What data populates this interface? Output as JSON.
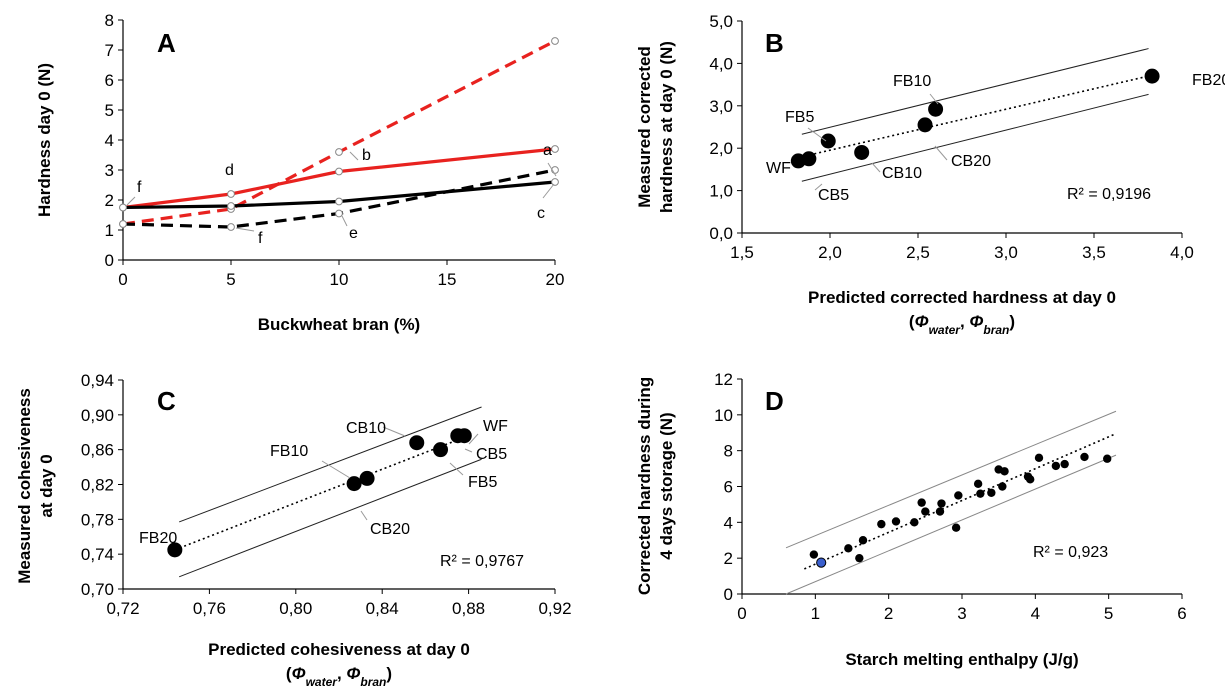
{
  "chart_data": [
    {
      "panel": "A",
      "type": "line",
      "xlabel": "Buckwheat bran (%)",
      "ylabel": "Hardness day 0 (N)",
      "xlim": [
        0,
        20
      ],
      "ylim": [
        0,
        8
      ],
      "xticks": [
        "0",
        "5",
        "10",
        "15",
        "20"
      ],
      "yticks": [
        "0",
        "1",
        "2",
        "3",
        "4",
        "5",
        "6",
        "7",
        "8"
      ],
      "series": [
        {
          "color": "#e8221f",
          "style": "dashed",
          "x": [
            0,
            5,
            10,
            20
          ],
          "values": [
            1.2,
            1.7,
            3.6,
            7.3
          ]
        },
        {
          "color": "#e8221f",
          "style": "solid",
          "x": [
            0,
            5,
            10,
            20
          ],
          "values": [
            1.75,
            2.2,
            2.95,
            3.7
          ]
        },
        {
          "color": "#000000",
          "style": "solid",
          "x": [
            0,
            5,
            10,
            20
          ],
          "values": [
            1.75,
            1.8,
            1.95,
            2.6
          ]
        },
        {
          "color": "#000000",
          "style": "dashed",
          "x": [
            0,
            5,
            10,
            20
          ],
          "values": [
            1.2,
            1.1,
            1.55,
            3.0
          ]
        }
      ],
      "annotations": [
        "a",
        "b",
        "c",
        "d",
        "e",
        "f",
        "f"
      ]
    },
    {
      "panel": "B",
      "type": "scatter",
      "xlabel": "Predicted corrected hardness at day 0",
      "xlabel_sub": "(Φwater, Φbran)",
      "xlabel_sub_parts": [
        "(",
        "Φ",
        "water",
        ", ",
        "Φ",
        "bran",
        ")"
      ],
      "ylabel": "Measured corrected",
      "ylabel2": "hardness at day 0 (N)",
      "xlim": [
        1.5,
        4.0
      ],
      "ylim": [
        0.0,
        5.0
      ],
      "xticks": [
        "1,5",
        "2,0",
        "2,5",
        "3,0",
        "3,5",
        "4,0"
      ],
      "yticks": [
        "0,0",
        "1,0",
        "2,0",
        "3,0",
        "4,0",
        "5,0"
      ],
      "points": [
        {
          "label": "WF",
          "x": 1.82,
          "y": 1.7
        },
        {
          "label": "CB5",
          "x": 1.88,
          "y": 1.75
        },
        {
          "label": "FB5",
          "x": 1.99,
          "y": 2.17
        },
        {
          "label": "CB10",
          "x": 2.18,
          "y": 1.9
        },
        {
          "label": "CB20",
          "x": 2.54,
          "y": 2.55
        },
        {
          "label": "FB10",
          "x": 2.6,
          "y": 2.92
        },
        {
          "label": "FB20",
          "x": 3.83,
          "y": 3.7
        }
      ],
      "r2": "R² = 0,9196"
    },
    {
      "panel": "C",
      "type": "scatter",
      "xlabel": "Predicted cohesiveness at day 0",
      "xlabel_sub": "(Φwater, Φbran)",
      "xlabel_sub_parts": [
        "(",
        "Φ",
        "water",
        ", ",
        "Φ",
        "bran",
        ")"
      ],
      "ylabel": "Measured cohesiveness",
      "ylabel2": "at day 0",
      "xlim": [
        0.72,
        0.92
      ],
      "ylim": [
        0.7,
        0.94
      ],
      "xticks": [
        "0,72",
        "0,76",
        "0,80",
        "0,84",
        "0,88",
        "0,92"
      ],
      "yticks": [
        "0,70",
        "0,74",
        "0,78",
        "0,82",
        "0,86",
        "0,90",
        "0,94"
      ],
      "points": [
        {
          "label": "FB20",
          "x": 0.744,
          "y": 0.745
        },
        {
          "label": "FB10",
          "x": 0.827,
          "y": 0.821
        },
        {
          "label": "CB20",
          "x": 0.833,
          "y": 0.827
        },
        {
          "label": "CB10",
          "x": 0.856,
          "y": 0.868
        },
        {
          "label": "FB5",
          "x": 0.867,
          "y": 0.86
        },
        {
          "label": "CB5",
          "x": 0.875,
          "y": 0.876
        },
        {
          "label": "WF",
          "x": 0.878,
          "y": 0.876
        }
      ],
      "r2": "R² = 0,9767"
    },
    {
      "panel": "D",
      "type": "scatter",
      "xlabel": "Starch melting enthalpy (J/g)",
      "ylabel": "Corrected hardness during",
      "ylabel2": "4 days storage (N)",
      "xlim": [
        0,
        6
      ],
      "ylim": [
        0,
        12
      ],
      "xticks": [
        "0",
        "1",
        "2",
        "3",
        "4",
        "5",
        "6"
      ],
      "yticks": [
        "0",
        "2",
        "4",
        "6",
        "8",
        "10",
        "12"
      ],
      "points": [
        {
          "x": 0.98,
          "y": 2.2
        },
        {
          "x": 1.08,
          "y": 1.75,
          "highlight": true
        },
        {
          "x": 1.45,
          "y": 2.55
        },
        {
          "x": 1.6,
          "y": 2.0
        },
        {
          "x": 1.65,
          "y": 3.0
        },
        {
          "x": 1.9,
          "y": 3.9
        },
        {
          "x": 2.1,
          "y": 4.05
        },
        {
          "x": 2.35,
          "y": 4.0
        },
        {
          "x": 2.45,
          "y": 5.1
        },
        {
          "x": 2.5,
          "y": 4.6
        },
        {
          "x": 2.7,
          "y": 4.6
        },
        {
          "x": 2.72,
          "y": 5.05
        },
        {
          "x": 2.92,
          "y": 3.7
        },
        {
          "x": 2.95,
          "y": 5.5
        },
        {
          "x": 3.22,
          "y": 6.15
        },
        {
          "x": 3.25,
          "y": 5.6
        },
        {
          "x": 3.4,
          "y": 5.65
        },
        {
          "x": 3.5,
          "y": 6.95
        },
        {
          "x": 3.55,
          "y": 6.0
        },
        {
          "x": 3.58,
          "y": 6.85
        },
        {
          "x": 3.9,
          "y": 6.55
        },
        {
          "x": 3.93,
          "y": 6.4
        },
        {
          "x": 4.05,
          "y": 7.6
        },
        {
          "x": 4.28,
          "y": 7.15
        },
        {
          "x": 4.4,
          "y": 7.25
        },
        {
          "x": 4.67,
          "y": 7.65
        },
        {
          "x": 4.98,
          "y": 7.55
        }
      ],
      "r2": "R² = 0,923"
    }
  ]
}
